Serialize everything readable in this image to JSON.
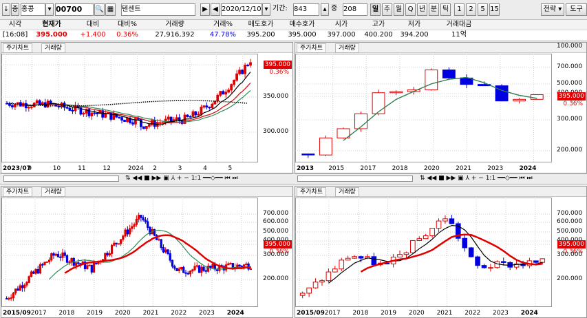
{
  "toolbar": {
    "market": "홍콩",
    "code": "00700",
    "name": "텐센트",
    "date": "2020/12/10",
    "period_label": "기간:",
    "period_value": "843",
    "count_label": "중",
    "count_value": "208",
    "intervals": [
      "일",
      "주",
      "월",
      "Q",
      "년",
      "분",
      "틱",
      "1",
      "2",
      "5",
      "15"
    ],
    "active_interval": "일",
    "strategy_label": "전략",
    "tools_label": "도구"
  },
  "quote": {
    "headers": [
      "시각",
      "현재가",
      "대비",
      "대비%",
      "거래량",
      "거래%",
      "매도호가",
      "매수호가",
      "시가",
      "고가",
      "저가",
      "거래대금"
    ],
    "values": [
      "[16:08]",
      "395.000",
      "+1.400",
      "0.36%",
      "27,916,392",
      "47.78%",
      "395.200",
      "395.000",
      "397.000",
      "400.200",
      "394.200",
      "11억"
    ]
  },
  "tabs": {
    "price": "주가차트",
    "volume": "거래량"
  },
  "panes": [
    {
      "id": "tl",
      "axis": [
        "395.000",
        "350.000",
        "300.000"
      ],
      "badge": "395.000",
      "pct": "0.36%",
      "xlabels": [
        "2023/07",
        "9",
        "10",
        "11",
        "12",
        "2024",
        "2",
        "3",
        "4",
        "5"
      ]
    },
    {
      "id": "tr",
      "axis": [
        "700.000",
        "500.000",
        "400.000",
        "395.000",
        "300.000",
        "200.000",
        "100.000"
      ],
      "badge": "395.000",
      "pct": "0.36%",
      "xlabels": [
        "2013",
        "2015",
        "2017",
        "2018",
        "2020",
        "2021",
        "2023",
        "2024"
      ]
    },
    {
      "id": "bl",
      "axis": [
        "700.000",
        "600.000",
        "500.000",
        "400.000",
        "395.000",
        "300.000",
        "200.000"
      ],
      "badge": "395.000",
      "pct": "0.36%",
      "xlabels": [
        "2015/09",
        "2017",
        "2018",
        "2019",
        "2020",
        "2021",
        "2022",
        "2023",
        "2024"
      ]
    },
    {
      "id": "br",
      "axis": [
        "700.000",
        "600.000",
        "500.000",
        "400.000",
        "395.000",
        "300.000",
        "200.000"
      ],
      "badge": "395.000",
      "pct": "0.36%",
      "xlabels": [
        "2015/09",
        "2017",
        "2018",
        "2019",
        "2020",
        "2021",
        "2022",
        "2023",
        "2024"
      ]
    }
  ],
  "controls": {
    "ratio": "1:1"
  },
  "colors": {
    "up": "#e00000",
    "down": "#0000e0",
    "ma_long": "#e00000",
    "ma_mid": "#2e8b57",
    "ma_short": "#000000",
    "badge": "#e40000"
  }
}
